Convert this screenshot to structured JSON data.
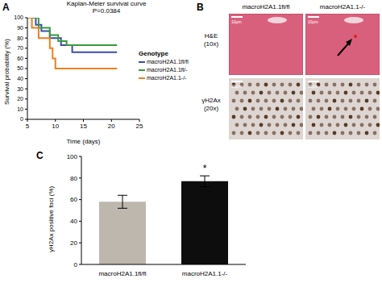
{
  "panel_labels": [
    "A",
    "B",
    "C"
  ],
  "chart_data": [
    {
      "type": "line",
      "title": "Kaplan-Meier survival curve",
      "subtitle": "P=0.0384",
      "x_label": "Time (days)",
      "y_label": "Survival probability (%)",
      "xlim": [
        5,
        25
      ],
      "xticks": [
        5,
        10,
        15,
        20,
        25
      ],
      "ylim": [
        0,
        100
      ],
      "yticks": [
        0,
        10,
        20,
        30,
        40,
        50,
        60,
        70,
        80,
        90,
        100
      ],
      "grid": false,
      "legend": "right",
      "legend_title": "Genotype",
      "line_style": "step",
      "series": [
        {
          "name": "macroH2A1.1fl/fl",
          "color": "#3b4ea6",
          "x": [
            5,
            6.5,
            7.5,
            9,
            11,
            13,
            21
          ],
          "values": [
            100,
            93,
            87,
            80,
            73,
            66,
            66
          ]
        },
        {
          "name": "macroH2A1.1fl/-",
          "color": "#3a9a3a",
          "x": [
            5,
            7,
            9,
            10.5,
            12,
            21
          ],
          "values": [
            100,
            90,
            83,
            77,
            73,
            73
          ]
        },
        {
          "name": "macroH2A1.1-/-",
          "color": "#f07f1c",
          "x": [
            5,
            5.8,
            7,
            9,
            9.5,
            10,
            21
          ],
          "values": [
            100,
            90,
            80,
            70,
            60,
            50,
            50
          ]
        }
      ]
    },
    {
      "type": "bar",
      "y_label": "γH2Ax positive foci (%)",
      "categories": [
        "macroH2A1.1fl/fl",
        "macroH2A1.1-/-"
      ],
      "values": [
        58,
        77
      ],
      "errors": [
        6,
        5
      ],
      "colors": [
        "#bdb7ad",
        "#0d0d0d"
      ],
      "ylim": [
        0,
        100
      ],
      "yticks": [
        0,
        20,
        40,
        60,
        80,
        100
      ],
      "annotations": [
        {
          "category": "macroH2A1.1-/-",
          "text": "*"
        }
      ]
    }
  ],
  "images": {
    "columns": [
      "macroH2A1.1fl/fl",
      "macroH2A1.1-/-"
    ],
    "rows": [
      {
        "name": "H&E",
        "magnification": "(10x)"
      },
      {
        "name": "γH2Ax",
        "magnification": "(20x)"
      }
    ],
    "scale_bar": "10μm"
  }
}
